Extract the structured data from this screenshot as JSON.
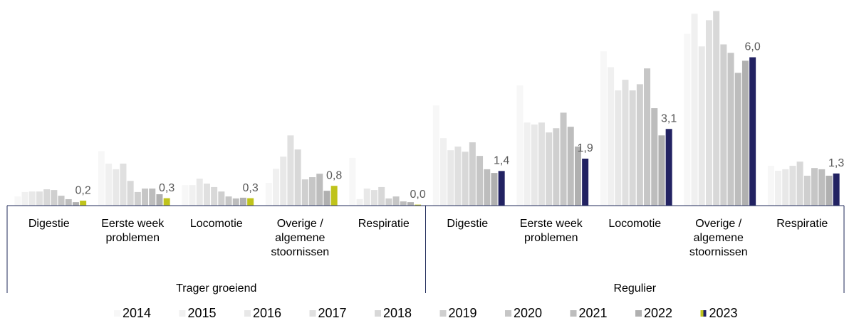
{
  "chart_data": {
    "type": "bar",
    "groups": [
      {
        "name": "Trager groeiend",
        "categories": [
          "Digestie",
          "Eerste week problemen",
          "Locomotie",
          "Overige / algemene stoornissen",
          "Respiratie"
        ]
      },
      {
        "name": "Regulier",
        "categories": [
          "Digestie",
          "Eerste week problemen",
          "Locomotie",
          "Overige / algemene stoornissen",
          "Respiratie"
        ]
      }
    ],
    "ylim": [
      0,
      8
    ],
    "series": [
      {
        "name": "2014",
        "color": "#f7f7f7",
        "values": [
          0.37,
          2.2,
          0.83,
          0.92,
          1.93,
          4.05,
          4.86,
          6.24,
          6.95,
          1.61
        ]
      },
      {
        "name": "2015",
        "color": "#f0f0f0",
        "values": [
          0.55,
          1.7,
          0.83,
          1.49,
          0.26,
          2.73,
          3.36,
          5.6,
          7.76,
          1.41
        ]
      },
      {
        "name": "2016",
        "color": "#e8e8e8",
        "values": [
          0.57,
          1.47,
          1.09,
          1.98,
          0.69,
          2.24,
          3.28,
          4.66,
          6.44,
          1.47
        ]
      },
      {
        "name": "2017",
        "color": "#e0e0e0",
        "values": [
          0.57,
          1.7,
          0.89,
          2.84,
          0.63,
          2.39,
          3.36,
          5.09,
          7.5,
          1.61
        ]
      },
      {
        "name": "2018",
        "color": "#d8d8d8",
        "values": [
          0.66,
          1.0,
          0.75,
          2.27,
          0.75,
          2.18,
          2.96,
          4.66,
          7.87,
          1.78
        ]
      },
      {
        "name": "2019",
        "color": "#cfcfcf",
        "values": [
          0.63,
          0.55,
          0.57,
          1.06,
          0.29,
          2.56,
          3.13,
          4.91,
          6.52,
          1.21
        ]
      },
      {
        "name": "2020",
        "color": "#c6c6c6",
        "values": [
          0.4,
          0.69,
          0.37,
          1.15,
          0.37,
          2.01,
          3.76,
          5.55,
          6.18,
          1.52
        ]
      },
      {
        "name": "2021",
        "color": "#bdbdbd",
        "values": [
          0.26,
          0.69,
          0.29,
          1.29,
          0.17,
          1.47,
          3.19,
          3.94,
          5.37,
          1.47
        ]
      },
      {
        "name": "2022",
        "color": "#b0b0b0",
        "values": [
          0.14,
          0.46,
          0.32,
          0.6,
          0.14,
          1.32,
          2.39,
          2.84,
          5.86,
          1.21
        ]
      },
      {
        "name": "2023",
        "colors": [
          "#bfc31b",
          "#222262"
        ],
        "values": [
          0.2,
          0.3,
          0.3,
          0.8,
          0.04,
          1.4,
          1.9,
          3.1,
          6.0,
          1.3
        ],
        "value_labels": [
          "0,2",
          "0,3",
          "0,3",
          "0,8",
          "0,0",
          "1,4",
          "1,9",
          "3,1",
          "6,0",
          "1,3"
        ]
      }
    ]
  }
}
